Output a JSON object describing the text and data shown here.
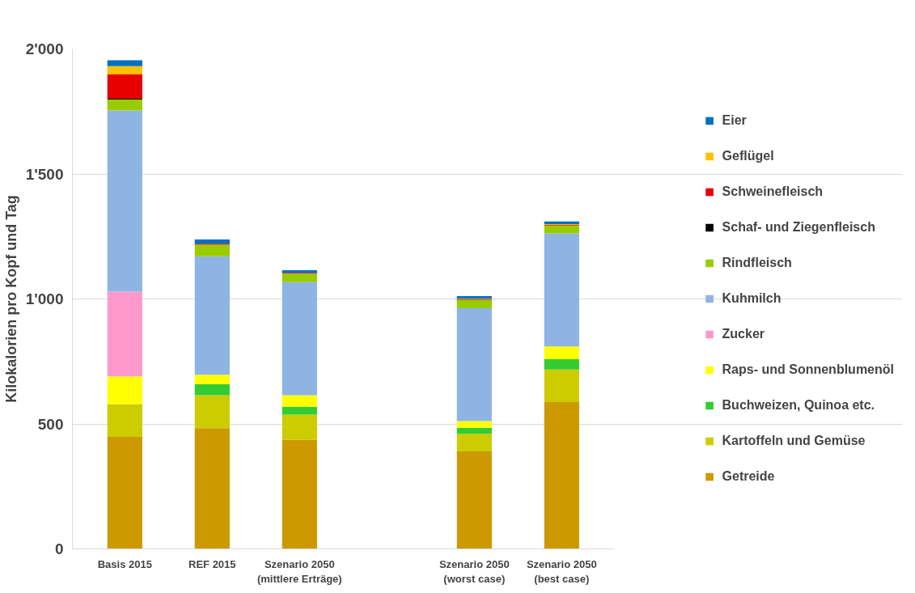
{
  "chart_data": {
    "type": "bar",
    "stacked": true,
    "ylabel": "Kilokalorien pro Kopf und Tag",
    "categories": [
      "Basis 2015",
      "REF 2015",
      "Szenario 2050\n(mittlere Erträge)",
      null,
      "Szenario 2050\n(worst case)",
      "Szenario 2050\n(best case)"
    ],
    "series": [
      {
        "name": "Getreide",
        "color": "#cc9900",
        "values": [
          448,
          483,
          436,
          null,
          390,
          587
        ]
      },
      {
        "name": "Kartoffeln und Gemüse",
        "color": "#cccc00",
        "values": [
          131,
          132,
          101,
          null,
          70,
          131
        ]
      },
      {
        "name": "Buchweizen, Quinoa etc.",
        "color": "#33cc33",
        "values": [
          0,
          44,
          32,
          null,
          25,
          41
        ]
      },
      {
        "name": "Raps- und Sonnenblumenöl",
        "color": "#ffff00",
        "values": [
          111,
          38,
          46,
          null,
          26,
          51
        ]
      },
      {
        "name": "Zucker",
        "color": "#ff99cc",
        "values": [
          339,
          0,
          0,
          null,
          0,
          0
        ]
      },
      {
        "name": "Kuhmilch",
        "color": "#8eb4e3",
        "values": [
          725,
          474,
          452,
          null,
          452,
          452
        ]
      },
      {
        "name": "Rindfleisch",
        "color": "#99cc00",
        "values": [
          44,
          46,
          34,
          null,
          33,
          32
        ]
      },
      {
        "name": "Schaf- und Ziegenfleisch",
        "color": "#000000",
        "values": [
          3,
          0,
          0,
          null,
          0,
          0
        ]
      },
      {
        "name": "Schweinefleisch",
        "color": "#e60000",
        "values": [
          97,
          4,
          3,
          null,
          2,
          2
        ]
      },
      {
        "name": "Geflügel",
        "color": "#ffc000",
        "values": [
          33,
          0,
          null,
          null,
          3,
          3
        ]
      },
      {
        "name": "Eier",
        "color": "#0070c0",
        "values": [
          24,
          17,
          11,
          null,
          10,
          11
        ]
      }
    ],
    "ylim": [
      0,
      2000
    ],
    "yticks": [
      {
        "value": 0,
        "label": "0"
      },
      {
        "value": 500,
        "label": "500"
      },
      {
        "value": 1000,
        "label": "1'000"
      },
      {
        "value": 1500,
        "label": "1'500"
      },
      {
        "value": 2000,
        "label": "2'000"
      }
    ],
    "grid": "y",
    "legend": "right"
  }
}
